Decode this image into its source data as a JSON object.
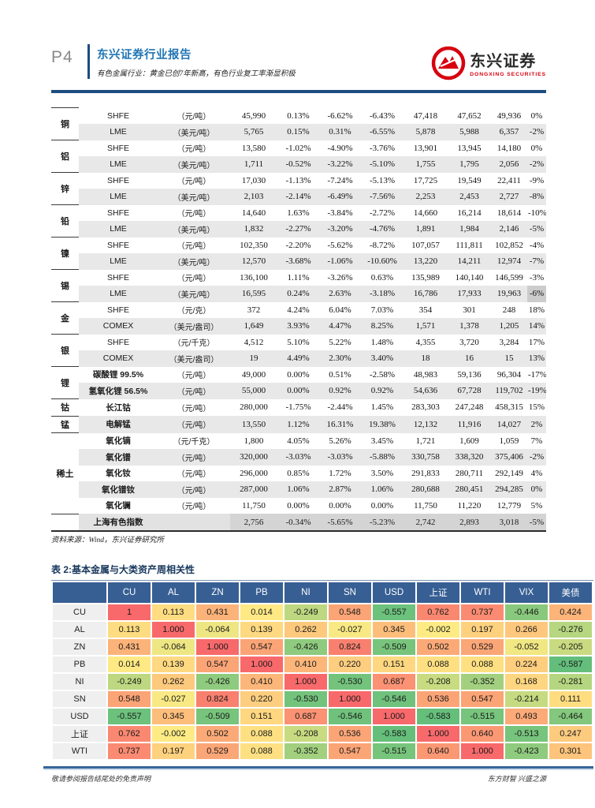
{
  "header": {
    "page_number": "P4",
    "report_type": "东兴证券行业报告",
    "subtitle": "有色金属行业：黄金已创7年新高，有色行业复工率渐显积极",
    "logo": {
      "name_cn": "东兴证券",
      "name_en": "DONGXING SECURITIES",
      "brand_color": "#d7000f"
    }
  },
  "metal_table": {
    "groups": [
      {
        "label": "铜",
        "rows": [
          {
            "name": "SHFE",
            "unit": "（元/吨）",
            "values": [
              "45,990",
              "0.13%",
              "-6.62%",
              "-6.43%",
              "47,418",
              "47,652",
              "49,936",
              "0%"
            ]
          },
          {
            "name": "LME",
            "unit": "（美元/吨）",
            "values": [
              "5,765",
              "0.15%",
              "0.31%",
              "-6.55%",
              "5,878",
              "5,988",
              "6,357",
              "-2%"
            ]
          }
        ]
      },
      {
        "label": "铝",
        "rows": [
          {
            "name": "SHFE",
            "unit": "（元/吨）",
            "values": [
              "13,580",
              "-1.02%",
              "-4.90%",
              "-3.76%",
              "13,901",
              "13,945",
              "14,180",
              "0%"
            ]
          },
          {
            "name": "LME",
            "unit": "（美元/吨）",
            "values": [
              "1,711",
              "-0.52%",
              "-3.22%",
              "-5.10%",
              "1,755",
              "1,795",
              "2,056",
              "-2%"
            ]
          }
        ]
      },
      {
        "label": "锌",
        "rows": [
          {
            "name": "SHFE",
            "unit": "（元/吨）",
            "values": [
              "17,030",
              "-1.13%",
              "-7.24%",
              "-5.13%",
              "17,725",
              "19,549",
              "22,411",
              "-9%"
            ]
          },
          {
            "name": "LME",
            "unit": "（美元/吨）",
            "values": [
              "2,103",
              "-2.14%",
              "-6.49%",
              "-7.56%",
              "2,253",
              "2,453",
              "2,727",
              "-8%"
            ]
          }
        ]
      },
      {
        "label": "铅",
        "rows": [
          {
            "name": "SHFE",
            "unit": "（元/吨）",
            "values": [
              "14,640",
              "1.63%",
              "-3.84%",
              "-2.72%",
              "14,660",
              "16,214",
              "18,614",
              "-10%"
            ]
          },
          {
            "name": "LME",
            "unit": "（美元/吨）",
            "values": [
              "1,832",
              "-2.27%",
              "-3.20%",
              "-4.76%",
              "1,891",
              "1,984",
              "2,146",
              "-5%"
            ]
          }
        ]
      },
      {
        "label": "镍",
        "rows": [
          {
            "name": "SHFE",
            "unit": "（元/吨）",
            "values": [
              "102,350",
              "-2.20%",
              "-5.62%",
              "-8.72%",
              "107,057",
              "111,811",
              "102,852",
              "-4%"
            ]
          },
          {
            "name": "LME",
            "unit": "（美元/吨）",
            "values": [
              "12,570",
              "-3.68%",
              "-1.06%",
              "-10.60%",
              "13,220",
              "14,211",
              "12,974",
              "-7%"
            ]
          }
        ]
      },
      {
        "label": "锡",
        "rows": [
          {
            "name": "SHFE",
            "unit": "（元/吨）",
            "values": [
              "136,100",
              "1.11%",
              "-3.26%",
              "0.63%",
              "135,989",
              "140,140",
              "146,599",
              "-3%"
            ]
          },
          {
            "name": "LME",
            "unit": "（美元/吨）",
            "values": [
              "16,595",
              "0.24%",
              "2.63%",
              "-3.18%",
              "16,786",
              "17,933",
              "19,963",
              "-6%"
            ],
            "highlight_last": true
          }
        ]
      },
      {
        "label": "金",
        "rows": [
          {
            "name": "SHFE",
            "unit": "（元/克）",
            "values": [
              "372",
              "4.24%",
              "6.04%",
              "7.03%",
              "354",
              "301",
              "248",
              "18%"
            ]
          },
          {
            "name": "COMEX",
            "unit": "（美元/盎司）",
            "values": [
              "1,649",
              "3.93%",
              "4.47%",
              "8.25%",
              "1,571",
              "1,378",
              "1,205",
              "14%"
            ]
          }
        ]
      },
      {
        "label": "银",
        "rows": [
          {
            "name": "SHFE",
            "unit": "（元/千克）",
            "values": [
              "4,512",
              "5.10%",
              "5.22%",
              "1.48%",
              "4,355",
              "3,720",
              "3,284",
              "17%"
            ]
          },
          {
            "name": "COMEX",
            "unit": "（美元/盎司）",
            "values": [
              "19",
              "4.49%",
              "2.30%",
              "3.40%",
              "18",
              "16",
              "15",
              "13%"
            ]
          }
        ]
      },
      {
        "label": "锂",
        "rows": [
          {
            "name": "碳酸锂 99.5%",
            "unit": "（元/吨）",
            "values": [
              "49,000",
              "0.00%",
              "0.51%",
              "-2.58%",
              "48,983",
              "59,136",
              "96,304",
              "-17%"
            ]
          },
          {
            "name": "氢氧化锂 56.5%",
            "unit": "（元/吨）",
            "values": [
              "55,000",
              "0.00%",
              "0.92%",
              "0.92%",
              "54,636",
              "67,728",
              "119,702",
              "-19%"
            ]
          }
        ]
      },
      {
        "label": "钴",
        "rows": [
          {
            "name": "长江钴",
            "unit": "（元/吨）",
            "values": [
              "280,000",
              "-1.75%",
              "-2.44%",
              "1.45%",
              "283,303",
              "247,248",
              "458,315",
              "15%"
            ]
          }
        ]
      },
      {
        "label": "锰",
        "rows": [
          {
            "name": "电解锰",
            "unit": "（元/吨）",
            "values": [
              "13,550",
              "1.12%",
              "16.31%",
              "19.38%",
              "12,132",
              "11,916",
              "14,027",
              "2%"
            ]
          }
        ]
      },
      {
        "label": "稀土",
        "rows": [
          {
            "name": "氧化镝",
            "unit": "（元/千克）",
            "values": [
              "1,800",
              "4.05%",
              "5.26%",
              "3.45%",
              "1,721",
              "1,609",
              "1,059",
              "7%"
            ]
          },
          {
            "name": "氧化镨",
            "unit": "（元/吨）",
            "values": [
              "320,000",
              "-3.03%",
              "-3.03%",
              "-5.88%",
              "330,758",
              "338,320",
              "375,406",
              "-2%"
            ]
          },
          {
            "name": "氧化钕",
            "unit": "（元/吨）",
            "values": [
              "296,000",
              "0.85%",
              "1.72%",
              "3.50%",
              "291,833",
              "280,711",
              "292,149",
              "4%"
            ]
          },
          {
            "name": "氧化镨钕",
            "unit": "（元/吨）",
            "values": [
              "287,000",
              "1.06%",
              "2.87%",
              "1.06%",
              "280,688",
              "280,451",
              "294,285",
              "0%"
            ]
          },
          {
            "name": "氧化镧",
            "unit": "（元/吨）",
            "values": [
              "11,750",
              "0.00%",
              "0.00%",
              "0.00%",
              "11,750",
              "11,220",
              "12,779",
              "5%"
            ]
          }
        ]
      }
    ],
    "index_row": {
      "name": "上海有色指数",
      "values": [
        "2,756",
        "-0.34%",
        "-5.65%",
        "-5.23%",
        "2,742",
        "2,893",
        "3,018",
        "-5%"
      ]
    },
    "source_note": "资料来源：Wind，东兴证券研究所"
  },
  "heatmap": {
    "type": "heatmap",
    "title": "表 2:基本金属与大类资产周相关性",
    "columns": [
      "CU",
      "AL",
      "ZN",
      "PB",
      "NI",
      "SN",
      "USD",
      "上证",
      "WTI",
      "VIX",
      "美债"
    ],
    "rows": [
      {
        "label": "CU",
        "values": [
          "1",
          "0.113",
          "0.431",
          "0.014",
          "-0.249",
          "0.548",
          "-0.557",
          "0.762",
          "0.737",
          "-0.446",
          "0.424"
        ]
      },
      {
        "label": "AL",
        "values": [
          "0.113",
          "1.000",
          "-0.064",
          "0.139",
          "0.262",
          "-0.027",
          "0.345",
          "-0.002",
          "0.197",
          "0.266",
          "-0.276"
        ]
      },
      {
        "label": "ZN",
        "values": [
          "0.431",
          "-0.064",
          "1.000",
          "0.547",
          "-0.426",
          "0.824",
          "-0.509",
          "0.502",
          "0.529",
          "-0.052",
          "-0.205"
        ]
      },
      {
        "label": "PB",
        "values": [
          "0.014",
          "0.139",
          "0.547",
          "1.000",
          "0.410",
          "0.220",
          "0.151",
          "0.088",
          "0.088",
          "0.224",
          "-0.587"
        ]
      },
      {
        "label": "NI",
        "values": [
          "-0.249",
          "0.262",
          "-0.426",
          "0.410",
          "1.000",
          "-0.530",
          "0.687",
          "-0.208",
          "-0.352",
          "0.168",
          "-0.281"
        ]
      },
      {
        "label": "SN",
        "values": [
          "0.548",
          "-0.027",
          "0.824",
          "0.220",
          "-0.530",
          "1.000",
          "-0.546",
          "0.536",
          "0.547",
          "-0.214",
          "0.111"
        ]
      },
      {
        "label": "USD",
        "values": [
          "-0.557",
          "0.345",
          "-0.509",
          "0.151",
          "0.687",
          "-0.546",
          "1.000",
          "-0.583",
          "-0.515",
          "0.493",
          "-0.464"
        ]
      },
      {
        "label": "上证",
        "values": [
          "0.762",
          "-0.002",
          "0.502",
          "0.088",
          "-0.208",
          "0.536",
          "-0.583",
          "1.000",
          "0.640",
          "-0.513",
          "0.247"
        ]
      },
      {
        "label": "WTI",
        "values": [
          "0.737",
          "0.197",
          "0.529",
          "0.088",
          "-0.352",
          "0.547",
          "-0.515",
          "0.640",
          "1.000",
          "-0.423",
          "0.301"
        ]
      }
    ],
    "color_scale": {
      "max": "#f8696b",
      "mid": "#ffeb84",
      "min": "#63be7b",
      "max_value": 1.0,
      "min_value": -0.59
    },
    "header_bg": "#375f94"
  },
  "footer": {
    "left": "敬请参阅报告结尾处的免责声明",
    "right": "东方财智 兴盛之源"
  }
}
